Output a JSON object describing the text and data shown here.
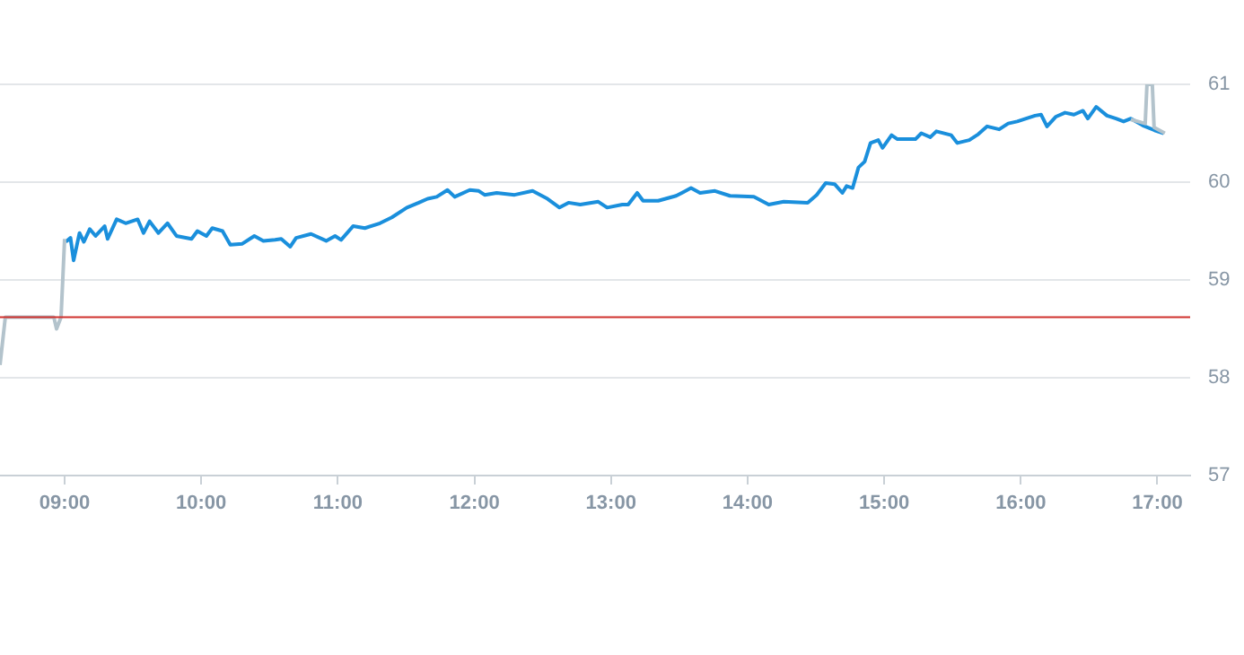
{
  "chart_data": {
    "type": "line",
    "marker": "none",
    "line_style": "solid",
    "grid": "y",
    "legend": false,
    "xlim": [
      8.527,
      17.24
    ],
    "ylim": [
      57,
      61
    ],
    "xticks": [
      {
        "value": 9,
        "label": "09:00"
      },
      {
        "value": 10,
        "label": "10:00"
      },
      {
        "value": 11,
        "label": "11:00"
      },
      {
        "value": 12,
        "label": "12:00"
      },
      {
        "value": 13,
        "label": "13:00"
      },
      {
        "value": 14,
        "label": "14:00"
      },
      {
        "value": 15,
        "label": "15:00"
      },
      {
        "value": 16,
        "label": "16:00"
      },
      {
        "value": 17,
        "label": "17:00"
      }
    ],
    "yticks": [
      57,
      58,
      59,
      60,
      61
    ],
    "ref_lines": [
      {
        "axis": "y",
        "value": 58.62,
        "label": null,
        "color": "#d0312d"
      }
    ],
    "series": [
      {
        "color": "#b3c3cc",
        "x": [
          8.527,
          8.566,
          8.921,
          8.941,
          8.974,
          9.0
        ],
        "values": [
          58.13,
          58.62,
          58.62,
          58.5,
          58.62,
          59.42
        ]
      },
      {
        "color": "#b3c3cc",
        "x": [
          16.806,
          16.911,
          16.924,
          16.963,
          16.976,
          17.055
        ],
        "values": [
          60.64,
          60.6,
          61.0,
          61.0,
          60.56,
          60.5
        ]
      },
      {
        "color": "#1a8fdc",
        "x": [
          9.009,
          9.043,
          9.066,
          9.109,
          9.141,
          9.184,
          9.227,
          9.293,
          9.315,
          9.381,
          9.447,
          9.535,
          9.578,
          9.622,
          9.687,
          9.753,
          9.819,
          9.929,
          9.972,
          10.038,
          10.081,
          10.156,
          10.213,
          10.301,
          10.389,
          10.455,
          10.541,
          10.586,
          10.652,
          10.695,
          10.804,
          10.915,
          10.98,
          11.024,
          11.112,
          11.198,
          11.309,
          11.396,
          11.506,
          11.593,
          11.658,
          11.724,
          11.803,
          11.856,
          11.966,
          12.032,
          12.075,
          12.163,
          12.294,
          12.426,
          12.535,
          12.623,
          12.689,
          12.775,
          12.907,
          12.972,
          13.083,
          13.126,
          13.192,
          13.235,
          13.346,
          13.477,
          13.586,
          13.652,
          13.761,
          13.871,
          14.046,
          14.155,
          14.265,
          14.44,
          14.506,
          14.572,
          14.637,
          14.694,
          14.725,
          14.769,
          14.812,
          14.857,
          14.9,
          14.957,
          14.988,
          15.054,
          15.097,
          15.229,
          15.272,
          15.338,
          15.382,
          15.491,
          15.535,
          15.623,
          15.689,
          15.754,
          15.842,
          15.908,
          15.974,
          16.039,
          16.105,
          16.149,
          16.192,
          16.258,
          16.324,
          16.389,
          16.455,
          16.491,
          16.552,
          16.631,
          16.697,
          16.753,
          16.806,
          16.894,
          16.98,
          17.046
        ],
        "values": [
          59.39,
          59.43,
          59.2,
          59.48,
          59.39,
          59.52,
          59.45,
          59.55,
          59.42,
          59.62,
          59.58,
          59.62,
          59.48,
          59.6,
          59.48,
          59.58,
          59.45,
          59.42,
          59.5,
          59.45,
          59.53,
          59.5,
          59.36,
          59.37,
          59.45,
          59.4,
          59.41,
          59.42,
          59.34,
          59.43,
          59.47,
          59.4,
          59.45,
          59.41,
          59.55,
          59.53,
          59.58,
          59.64,
          59.74,
          59.79,
          59.83,
          59.85,
          59.92,
          59.85,
          59.92,
          59.91,
          59.87,
          59.89,
          59.87,
          59.91,
          59.83,
          59.74,
          59.79,
          59.77,
          59.8,
          59.74,
          59.77,
          59.77,
          59.89,
          59.81,
          59.81,
          59.86,
          59.94,
          59.89,
          59.91,
          59.86,
          59.85,
          59.77,
          59.8,
          59.79,
          59.87,
          59.99,
          59.98,
          59.89,
          59.96,
          59.94,
          60.15,
          60.21,
          60.4,
          60.43,
          60.35,
          60.48,
          60.44,
          60.44,
          60.5,
          60.46,
          60.52,
          60.48,
          60.4,
          60.43,
          60.49,
          60.57,
          60.54,
          60.6,
          60.62,
          60.65,
          60.68,
          60.69,
          60.57,
          60.67,
          60.71,
          60.69,
          60.73,
          60.65,
          60.77,
          60.68,
          60.65,
          60.62,
          60.65,
          60.58,
          60.53,
          60.5
        ]
      }
    ]
  }
}
